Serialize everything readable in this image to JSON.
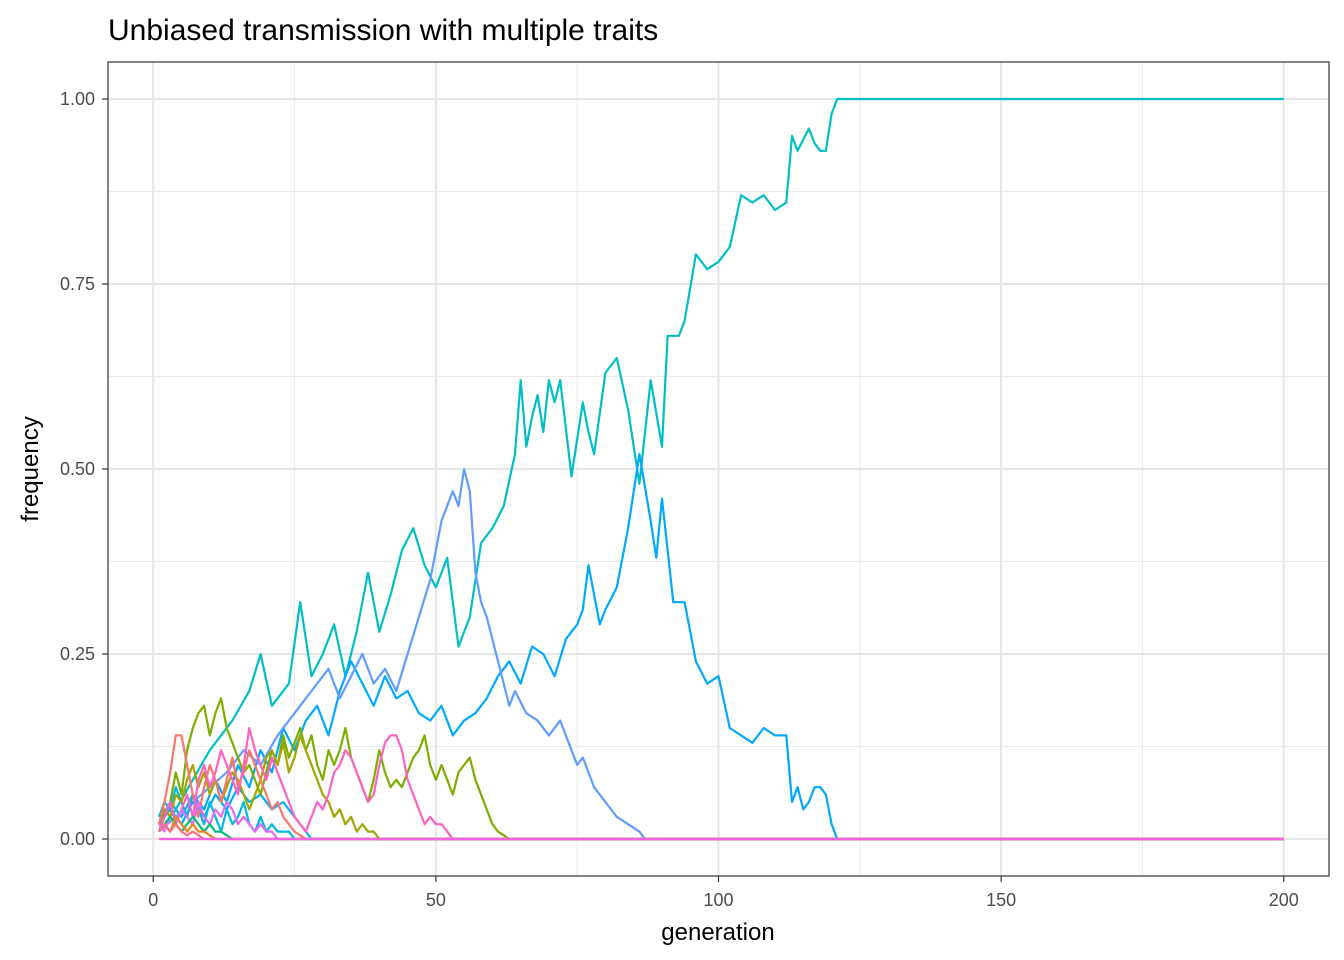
{
  "chart_data": {
    "type": "line",
    "title": "Unbiased transmission with multiple traits",
    "xlabel": "generation",
    "ylabel": "frequency",
    "xlim": [
      -8,
      208
    ],
    "ylim": [
      -0.05,
      1.05
    ],
    "x_ticks": [
      0,
      50,
      100,
      150,
      200
    ],
    "x_tick_labels": [
      "0",
      "50",
      "100",
      "150",
      "200"
    ],
    "y_ticks": [
      0,
      0.25,
      0.5,
      0.75,
      1.0
    ],
    "y_tick_labels": [
      "0.00",
      "0.25",
      "0.50",
      "0.75",
      "1.00"
    ],
    "x_minor": [
      25,
      75,
      125,
      175
    ],
    "y_minor": [
      0.125,
      0.375,
      0.625,
      0.875
    ],
    "grid": true,
    "legend": "none",
    "series": [
      {
        "color": "#00BFC4",
        "x": [
          1,
          4,
          7,
          10,
          14,
          17,
          19,
          21,
          24,
          26,
          28,
          30,
          32,
          34,
          36,
          38,
          40,
          42,
          44,
          46,
          48,
          50,
          52,
          54,
          56,
          58,
          60,
          62,
          64,
          65,
          66,
          67,
          68,
          69,
          70,
          71,
          72,
          74,
          76,
          77,
          78,
          80,
          82,
          84,
          86,
          88,
          90,
          91,
          92,
          93,
          94,
          96,
          98,
          100,
          102,
          104,
          106,
          108,
          110,
          112,
          113,
          114,
          116,
          117,
          118,
          119,
          120,
          121,
          122,
          200
        ],
        "y": [
          0.01,
          0.04,
          0.08,
          0.12,
          0.16,
          0.2,
          0.25,
          0.18,
          0.21,
          0.32,
          0.22,
          0.25,
          0.29,
          0.22,
          0.28,
          0.36,
          0.28,
          0.33,
          0.39,
          0.42,
          0.37,
          0.34,
          0.38,
          0.26,
          0.3,
          0.4,
          0.42,
          0.45,
          0.52,
          0.62,
          0.53,
          0.57,
          0.6,
          0.55,
          0.62,
          0.59,
          0.62,
          0.49,
          0.59,
          0.55,
          0.52,
          0.63,
          0.65,
          0.58,
          0.48,
          0.62,
          0.53,
          0.68,
          0.68,
          0.68,
          0.7,
          0.79,
          0.77,
          0.78,
          0.8,
          0.87,
          0.86,
          0.87,
          0.85,
          0.86,
          0.95,
          0.93,
          0.96,
          0.94,
          0.93,
          0.93,
          0.98,
          1.0,
          1.0,
          1.0
        ]
      },
      {
        "color": "#00A9FF",
        "x": [
          1,
          3,
          5,
          7,
          9,
          11,
          13,
          15,
          17,
          19,
          21,
          23,
          25,
          27,
          29,
          31,
          33,
          35,
          37,
          39,
          41,
          43,
          45,
          47,
          49,
          51,
          53,
          55,
          57,
          59,
          61,
          63,
          65,
          67,
          69,
          71,
          73,
          75,
          76,
          77,
          78,
          79,
          80,
          82,
          84,
          86,
          88,
          89,
          90,
          92,
          94,
          96,
          98,
          100,
          102,
          104,
          106,
          108,
          110,
          112,
          113,
          114,
          115,
          116,
          117,
          118,
          119,
          120,
          121,
          200
        ],
        "y": [
          0.02,
          0.05,
          0.03,
          0.06,
          0.04,
          0.08,
          0.05,
          0.1,
          0.07,
          0.12,
          0.09,
          0.15,
          0.12,
          0.16,
          0.18,
          0.14,
          0.2,
          0.24,
          0.21,
          0.18,
          0.22,
          0.19,
          0.2,
          0.17,
          0.16,
          0.18,
          0.14,
          0.16,
          0.17,
          0.19,
          0.22,
          0.24,
          0.21,
          0.26,
          0.25,
          0.22,
          0.27,
          0.29,
          0.31,
          0.37,
          0.33,
          0.29,
          0.31,
          0.34,
          0.42,
          0.52,
          0.43,
          0.38,
          0.46,
          0.32,
          0.32,
          0.24,
          0.21,
          0.22,
          0.15,
          0.14,
          0.13,
          0.15,
          0.14,
          0.14,
          0.05,
          0.07,
          0.04,
          0.05,
          0.07,
          0.07,
          0.06,
          0.02,
          0.0,
          0.0
        ]
      },
      {
        "color": "#619CFF",
        "x": [
          1,
          4,
          7,
          10,
          13,
          16,
          19,
          22,
          25,
          28,
          31,
          33,
          35,
          37,
          39,
          41,
          43,
          45,
          47,
          49,
          51,
          53,
          54,
          55,
          56,
          57,
          58,
          59,
          60,
          62,
          63,
          64,
          66,
          68,
          70,
          72,
          74,
          75,
          76,
          77,
          78,
          80,
          82,
          84,
          86,
          87,
          200
        ],
        "y": [
          0.01,
          0.03,
          0.05,
          0.07,
          0.09,
          0.12,
          0.1,
          0.14,
          0.17,
          0.2,
          0.23,
          0.19,
          0.22,
          0.25,
          0.21,
          0.23,
          0.2,
          0.25,
          0.3,
          0.35,
          0.43,
          0.47,
          0.45,
          0.5,
          0.47,
          0.36,
          0.32,
          0.3,
          0.27,
          0.21,
          0.18,
          0.2,
          0.17,
          0.16,
          0.14,
          0.16,
          0.12,
          0.1,
          0.11,
          0.09,
          0.07,
          0.05,
          0.03,
          0.02,
          0.01,
          0.0,
          0.0
        ]
      },
      {
        "color": "#00B0F6",
        "x": [
          1,
          3,
          5,
          7,
          9,
          11,
          13,
          15,
          17,
          19,
          21,
          23,
          25,
          26,
          27,
          28,
          200
        ],
        "y": [
          0.02,
          0.04,
          0.02,
          0.05,
          0.03,
          0.06,
          0.04,
          0.07,
          0.05,
          0.06,
          0.04,
          0.05,
          0.03,
          0.02,
          0.01,
          0.0,
          0.0
        ]
      },
      {
        "color": "#00B8E7",
        "x": [
          1,
          2,
          3,
          4,
          5,
          6,
          7,
          8,
          9,
          10,
          11,
          12,
          13,
          14,
          15,
          16,
          17,
          18,
          19,
          20,
          21,
          22,
          23,
          24,
          25,
          200
        ],
        "y": [
          0.03,
          0.05,
          0.04,
          0.07,
          0.05,
          0.03,
          0.06,
          0.04,
          0.02,
          0.05,
          0.03,
          0.01,
          0.04,
          0.02,
          0.03,
          0.05,
          0.02,
          0.01,
          0.03,
          0.01,
          0.02,
          0.01,
          0.01,
          0.01,
          0.0,
          0.0
        ]
      },
      {
        "color": "#7CAE00",
        "x": [
          1,
          2,
          3,
          4,
          5,
          6,
          7,
          8,
          9,
          10,
          11,
          12,
          13,
          14,
          15,
          16,
          17,
          18,
          19,
          20,
          21,
          22,
          23,
          24,
          25,
          26,
          27,
          28,
          29,
          30,
          31,
          32,
          33,
          34,
          35,
          36,
          37,
          38,
          39,
          40,
          41,
          42,
          43,
          44,
          45,
          46,
          47,
          48,
          49,
          50,
          51,
          52,
          53,
          54,
          55,
          56,
          57,
          58,
          59,
          60,
          61,
          62,
          63,
          200
        ],
        "y": [
          0.01,
          0.03,
          0.05,
          0.09,
          0.06,
          0.12,
          0.15,
          0.17,
          0.18,
          0.14,
          0.17,
          0.19,
          0.15,
          0.13,
          0.11,
          0.09,
          0.1,
          0.08,
          0.06,
          0.09,
          0.12,
          0.1,
          0.14,
          0.11,
          0.13,
          0.15,
          0.12,
          0.14,
          0.1,
          0.08,
          0.12,
          0.1,
          0.12,
          0.15,
          0.11,
          0.09,
          0.07,
          0.05,
          0.08,
          0.12,
          0.09,
          0.07,
          0.08,
          0.07,
          0.09,
          0.11,
          0.12,
          0.14,
          0.1,
          0.08,
          0.1,
          0.08,
          0.06,
          0.09,
          0.1,
          0.11,
          0.08,
          0.06,
          0.04,
          0.02,
          0.01,
          0.005,
          0.0,
          0.0
        ]
      },
      {
        "color": "#A3A500",
        "x": [
          1,
          2,
          3,
          4,
          5,
          6,
          7,
          8,
          9,
          10,
          11,
          12,
          13,
          14,
          15,
          16,
          17,
          18,
          19,
          20,
          21,
          22,
          23,
          24,
          25,
          26,
          27,
          28,
          29,
          30,
          31,
          32,
          33,
          34,
          35,
          36,
          37,
          38,
          39,
          40,
          200
        ],
        "y": [
          0.02,
          0.04,
          0.03,
          0.06,
          0.05,
          0.08,
          0.1,
          0.07,
          0.09,
          0.06,
          0.08,
          0.05,
          0.07,
          0.09,
          0.08,
          0.06,
          0.04,
          0.06,
          0.08,
          0.11,
          0.12,
          0.1,
          0.13,
          0.09,
          0.11,
          0.14,
          0.12,
          0.1,
          0.08,
          0.06,
          0.05,
          0.03,
          0.04,
          0.02,
          0.03,
          0.01,
          0.02,
          0.01,
          0.01,
          0.0,
          0.0
        ]
      },
      {
        "color": "#F8766D",
        "x": [
          1,
          2,
          3,
          4,
          5,
          6,
          7,
          8,
          9,
          10,
          11,
          12,
          13,
          14,
          15,
          16,
          17,
          18,
          19,
          20,
          21,
          22,
          23,
          24,
          25,
          26,
          27,
          200
        ],
        "y": [
          0.02,
          0.05,
          0.09,
          0.14,
          0.14,
          0.1,
          0.06,
          0.03,
          0.07,
          0.1,
          0.08,
          0.05,
          0.08,
          0.11,
          0.07,
          0.09,
          0.12,
          0.1,
          0.08,
          0.06,
          0.04,
          0.05,
          0.03,
          0.02,
          0.01,
          0.005,
          0.0,
          0.0
        ]
      },
      {
        "color": "#FF61C3",
        "x": [
          1,
          2,
          3,
          4,
          5,
          6,
          7,
          8,
          9,
          10,
          11,
          12,
          13,
          14,
          15,
          16,
          17,
          18,
          19,
          20,
          21,
          22,
          23,
          24,
          25,
          26,
          27,
          28,
          29,
          30,
          31,
          32,
          33,
          34,
          35,
          36,
          37,
          38,
          39,
          40,
          41,
          42,
          43,
          44,
          45,
          46,
          47,
          48,
          49,
          50,
          51,
          52,
          53,
          200
        ],
        "y": [
          0.01,
          0.03,
          0.05,
          0.02,
          0.04,
          0.06,
          0.03,
          0.08,
          0.1,
          0.07,
          0.09,
          0.12,
          0.1,
          0.08,
          0.06,
          0.1,
          0.15,
          0.12,
          0.1,
          0.08,
          0.11,
          0.09,
          0.07,
          0.05,
          0.03,
          0.02,
          0.01,
          0.03,
          0.05,
          0.04,
          0.06,
          0.09,
          0.1,
          0.12,
          0.11,
          0.09,
          0.07,
          0.05,
          0.06,
          0.1,
          0.13,
          0.14,
          0.14,
          0.12,
          0.08,
          0.06,
          0.04,
          0.02,
          0.03,
          0.02,
          0.02,
          0.01,
          0.0,
          0.0
        ]
      },
      {
        "color": "#E76BF3",
        "x": [
          1,
          2,
          3,
          4,
          5,
          6,
          7,
          8,
          9,
          10,
          11,
          12,
          13,
          14,
          15,
          16,
          17,
          18,
          19,
          20,
          21,
          22,
          200
        ],
        "y": [
          0.02,
          0.01,
          0.03,
          0.02,
          0.04,
          0.03,
          0.02,
          0.05,
          0.03,
          0.02,
          0.04,
          0.03,
          0.05,
          0.04,
          0.02,
          0.03,
          0.02,
          0.01,
          0.02,
          0.01,
          0.01,
          0.0,
          0.0
        ]
      },
      {
        "color": "#00BF7D",
        "x": [
          1,
          2,
          3,
          4,
          5,
          6,
          7,
          8,
          9,
          10,
          11,
          12,
          13,
          14,
          15,
          200
        ],
        "y": [
          0.01,
          0.02,
          0.03,
          0.02,
          0.01,
          0.02,
          0.03,
          0.02,
          0.01,
          0.02,
          0.01,
          0.01,
          0.005,
          0.0,
          0.0,
          0.0
        ]
      },
      {
        "color": "#E7861B",
        "x": [
          1,
          2,
          3,
          4,
          5,
          6,
          7,
          8,
          9,
          10,
          11,
          12,
          200
        ],
        "y": [
          0.01,
          0.02,
          0.01,
          0.03,
          0.02,
          0.01,
          0.02,
          0.01,
          0.01,
          0.005,
          0.0,
          0.0,
          0.0
        ]
      },
      {
        "color": "#FC717F",
        "x": [
          1,
          2,
          3,
          4,
          5,
          6,
          7,
          8,
          9,
          10,
          200
        ],
        "y": [
          0.01,
          0.02,
          0.01,
          0.02,
          0.01,
          0.005,
          0.01,
          0.005,
          0.0,
          0.0,
          0.0
        ]
      },
      {
        "color": "#F8766D",
        "x": [
          1,
          200
        ],
        "y": [
          0.0,
          0.0
        ]
      },
      {
        "color": "#F564E3",
        "x": [
          1,
          200
        ],
        "y": [
          0.0,
          0.0
        ]
      }
    ]
  }
}
